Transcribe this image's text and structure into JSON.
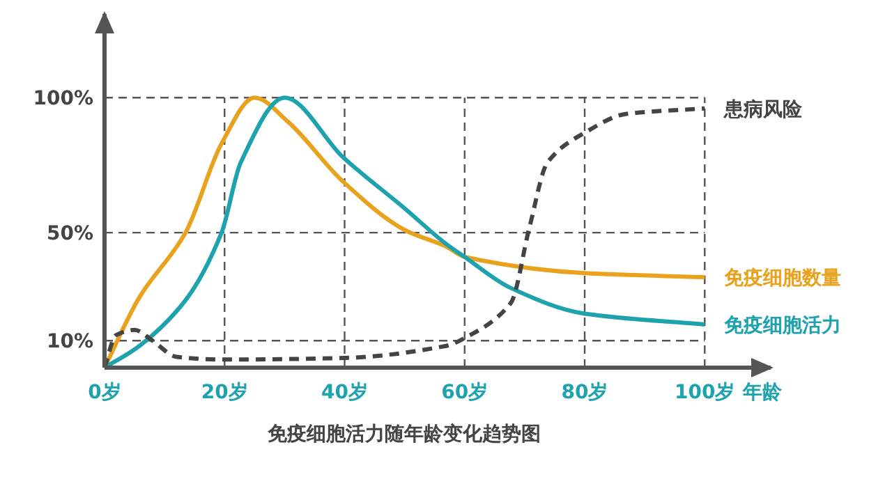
{
  "chart_data": {
    "type": "line",
    "title": "免疫细胞活力随年龄变化趋势图",
    "xlabel": "年龄",
    "xlim": [
      0,
      111
    ],
    "ylim": [
      0,
      131
    ],
    "xticks": [
      {
        "value": 0,
        "label": "0岁"
      },
      {
        "value": 20,
        "label": "20岁"
      },
      {
        "value": 40,
        "label": "40岁"
      },
      {
        "value": 60,
        "label": "60岁"
      },
      {
        "value": 80,
        "label": "80岁"
      },
      {
        "value": 100,
        "label": "100岁"
      }
    ],
    "yticks": [
      {
        "value": 10,
        "label": "10%"
      },
      {
        "value": 50,
        "label": "50%"
      },
      {
        "value": 100,
        "label": "100%"
      }
    ],
    "grid": true,
    "legend": false,
    "marker": "none",
    "series": [
      {
        "name": "免疫细胞数量",
        "color": "#e8a21e",
        "line_style": "solid",
        "x": [
          0,
          5.8,
          13.5,
          19.5,
          25,
          30.6,
          39.7,
          50,
          56.8,
          60,
          80,
          100
        ],
        "values": [
          0,
          26,
          50,
          83,
          100,
          91,
          69,
          51,
          45,
          41,
          35,
          33.5
        ]
      },
      {
        "name": "免疫细胞活力",
        "color": "#1ea3ae",
        "line_style": "solid",
        "x": [
          0,
          5.8,
          13.5,
          19.5,
          22.7,
          30,
          39.7,
          50,
          56.8,
          60,
          67.7,
          80,
          100
        ],
        "values": [
          0,
          8,
          25,
          50,
          76,
          100,
          78,
          59,
          46,
          41,
          29.5,
          20,
          16
        ]
      },
      {
        "name": "患病风险",
        "color": "#444444",
        "line_style": "dashed",
        "x": [
          0,
          1.9,
          5,
          8,
          12,
          19.7,
          40,
          56.8,
          60,
          67.7,
          70.8,
          73.8,
          80,
          87,
          100
        ],
        "values": [
          0,
          12,
          14,
          10,
          4,
          3,
          3.6,
          8,
          11,
          24,
          52,
          76,
          87,
          94,
          96
        ]
      }
    ]
  }
}
